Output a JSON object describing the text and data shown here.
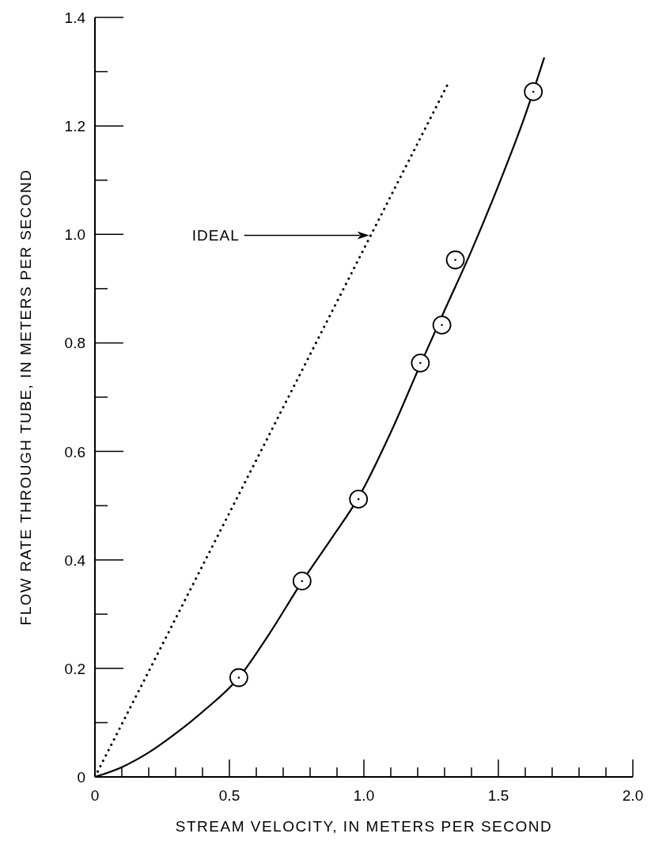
{
  "chart_data": {
    "type": "scatter",
    "xlabel": "STREAM VELOCITY, IN METERS PER SECOND",
    "ylabel": "FLOW RATE THROUGH TUBE, IN METERS PER SECOND",
    "xlim": [
      0,
      2.0
    ],
    "xticks": [
      0,
      {
        "value": 0.1,
        "label": null
      },
      {
        "value": 0.2,
        "label": null
      },
      {
        "value": 0.3,
        "label": null
      },
      {
        "value": 0.4,
        "label": null
      },
      {
        "value": 0.5,
        "label": "0.5"
      },
      {
        "value": 0.6,
        "label": null
      },
      {
        "value": 0.7,
        "label": null
      },
      {
        "value": 0.8,
        "label": null
      },
      {
        "value": 0.9,
        "label": null
      },
      {
        "value": 1.0,
        "label": "1.0"
      },
      {
        "value": 1.1,
        "label": null
      },
      {
        "value": 1.2,
        "label": null
      },
      {
        "value": 1.3,
        "label": null
      },
      {
        "value": 1.4,
        "label": null
      },
      {
        "value": 1.5,
        "label": "1.5"
      },
      {
        "value": 1.6,
        "label": null
      },
      {
        "value": 1.7,
        "label": null
      },
      {
        "value": 1.8,
        "label": null
      },
      {
        "value": 1.9,
        "label": null
      },
      {
        "value": 2.0,
        "label": "2.0"
      }
    ],
    "ylim": [
      0,
      1.4
    ],
    "yticks": [
      0,
      {
        "value": 0.1,
        "label": null
      },
      {
        "value": 0.2,
        "label": "0.2"
      },
      {
        "value": 0.3,
        "label": null
      },
      {
        "value": 0.4,
        "label": "0.4"
      },
      {
        "value": 0.5,
        "label": null
      },
      {
        "value": 0.6,
        "label": "0.6"
      },
      {
        "value": 0.7,
        "label": null
      },
      {
        "value": 0.8,
        "label": "0.8"
      },
      {
        "value": 0.9,
        "label": null
      },
      {
        "value": 1.0,
        "label": "1.0"
      },
      {
        "value": 1.1,
        "label": null
      },
      {
        "value": 1.2,
        "label": "1.2"
      },
      {
        "value": 1.3,
        "label": null
      },
      {
        "value": 1.4,
        "label": "1.4"
      }
    ],
    "series": [
      {
        "color": "#000000",
        "marker": "circle",
        "x": [
          0.535,
          0.77,
          0.98,
          1.21,
          1.29,
          1.34,
          1.63
        ],
        "values": [
          0.183,
          0.361,
          0.512,
          0.763,
          0.833,
          0.953,
          1.263
        ]
      },
      {
        "type": "line",
        "color": "#000000",
        "marker": "none",
        "line_style": "solid",
        "x": [
          0,
          0.1,
          0.2,
          0.3,
          0.4,
          0.535,
          0.65,
          0.77,
          0.88,
          0.98,
          1.1,
          1.21,
          1.3,
          1.4,
          1.5,
          1.6,
          1.67
        ],
        "values": [
          0,
          0.018,
          0.045,
          0.08,
          0.12,
          0.183,
          0.265,
          0.36,
          0.44,
          0.515,
          0.635,
          0.76,
          0.86,
          0.97,
          1.09,
          1.22,
          1.325
        ]
      },
      {
        "type": "line",
        "color": "#000000",
        "marker": "none",
        "line_style": "dotted",
        "x": [
          0,
          1.315
        ],
        "values": [
          0,
          1.28
        ]
      }
    ],
    "annotations": [
      "IDEAL"
    ]
  }
}
